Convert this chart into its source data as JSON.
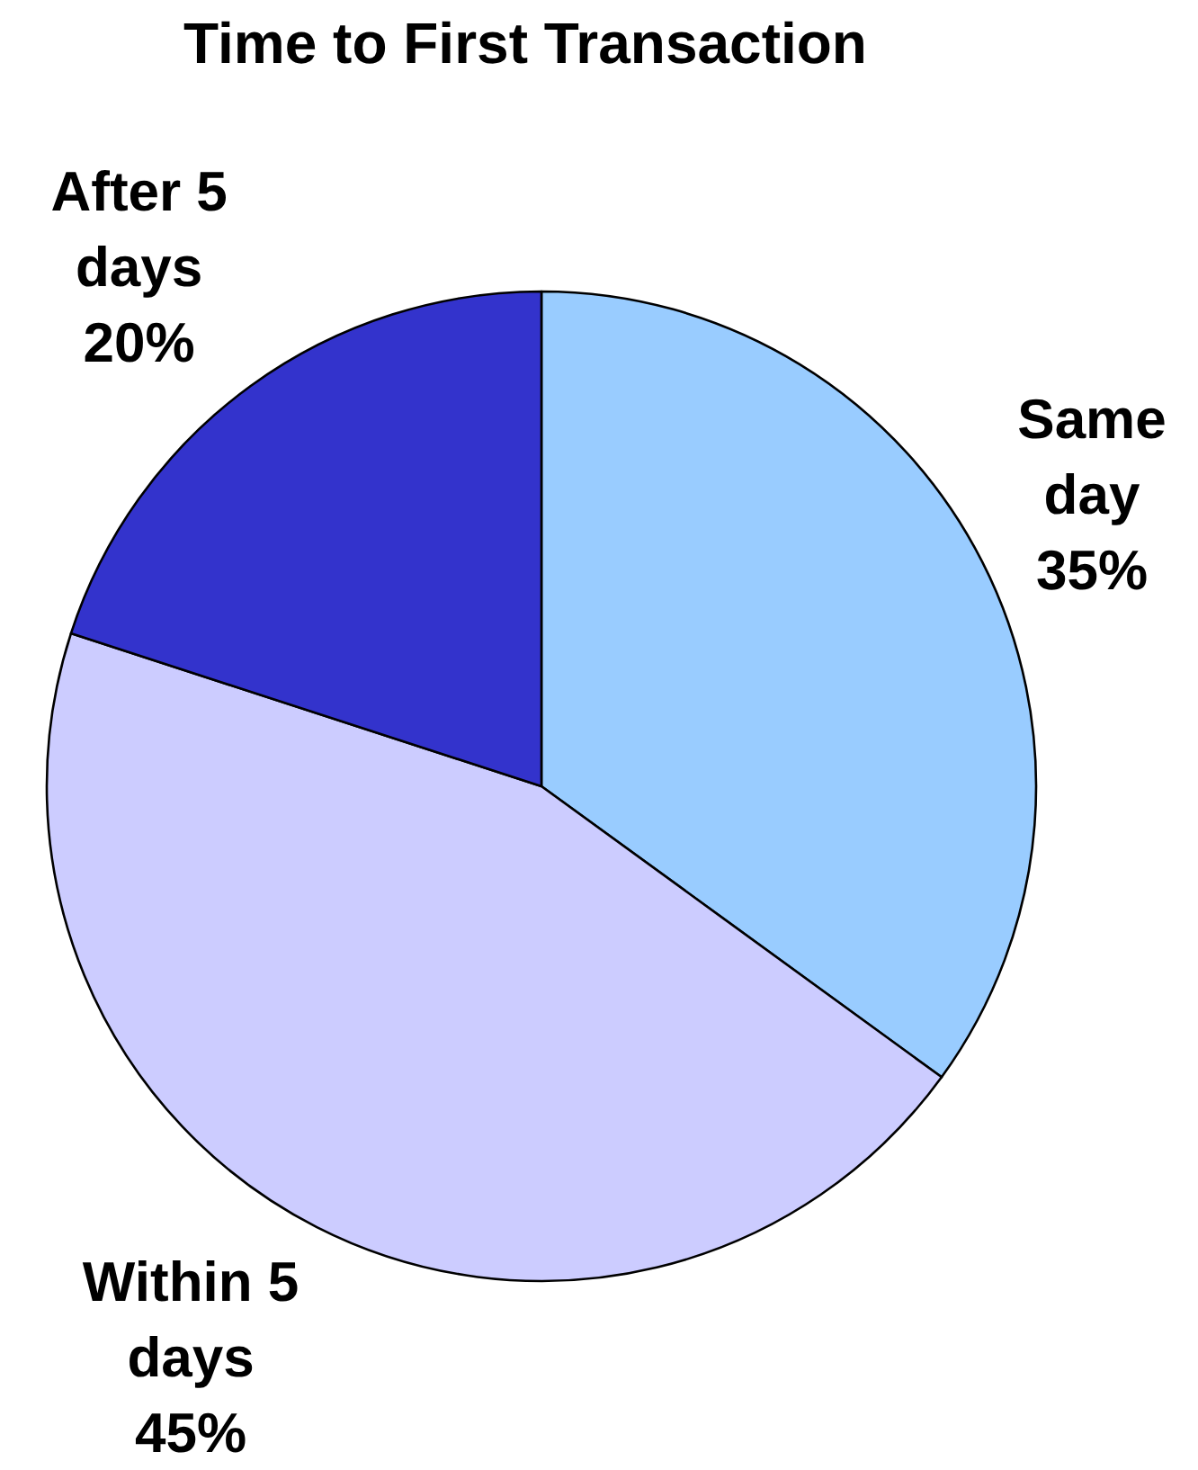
{
  "chart_data": {
    "type": "pie",
    "title": "Time to First Transaction",
    "categories": [
      "Same day",
      "Within 5 days",
      "After 5 days"
    ],
    "values": [
      35,
      45,
      20
    ],
    "colors": [
      "#99ccff",
      "#ccccff",
      "#3333cc"
    ],
    "value_labels": [
      "35%",
      "45%",
      "20%"
    ]
  }
}
